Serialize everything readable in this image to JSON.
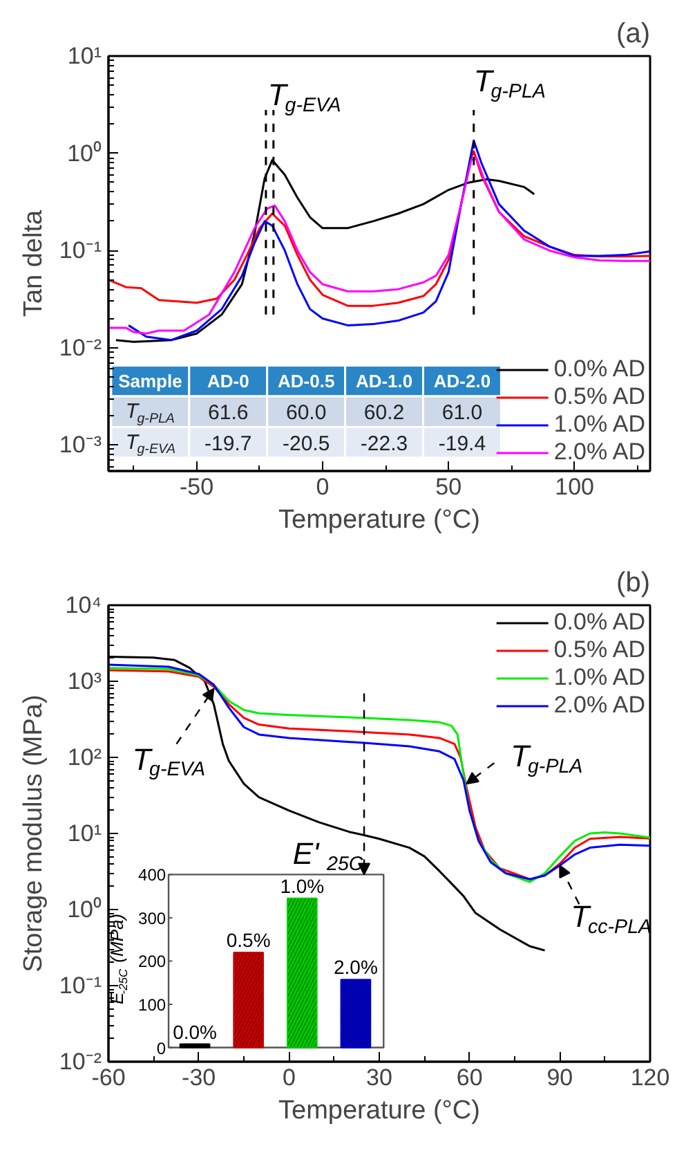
{
  "chart_data": [
    {
      "type": "line",
      "title": "(a)",
      "xlabel": "Temperature (°C)",
      "ylabel": "Tan delta",
      "log": "y",
      "legend": "bottom right",
      "xlim": [
        -85,
        130
      ],
      "ylim": [
        0.00054,
        10
      ],
      "xticks": [
        -50,
        0,
        50,
        100
      ],
      "yticks": [
        {
          "value": 0.001,
          "label": "10⁻³"
        },
        {
          "value": 0.01,
          "label": "10⁻²"
        },
        {
          "value": 0.1,
          "label": "10⁻¹"
        },
        {
          "value": 1,
          "label": "10⁰"
        },
        {
          "value": 10,
          "label": "10¹"
        }
      ],
      "series": [
        {
          "name": "0.0% AD",
          "color": "#000000",
          "x": [
            -82,
            -75,
            -60,
            -50,
            -40,
            -32,
            -27,
            -23,
            -20,
            -15,
            -10,
            -5,
            0,
            10,
            20,
            30,
            40,
            50,
            58,
            65,
            70,
            80,
            84
          ],
          "values": [
            0.012,
            0.0115,
            0.012,
            0.014,
            0.022,
            0.045,
            0.15,
            0.55,
            0.85,
            0.6,
            0.35,
            0.22,
            0.17,
            0.17,
            0.2,
            0.24,
            0.3,
            0.42,
            0.5,
            0.54,
            0.52,
            0.45,
            0.38
          ]
        },
        {
          "name": "0.5% AD",
          "color": "#ff0000",
          "x": [
            -85,
            -78,
            -72,
            -65,
            -50,
            -42,
            -35,
            -30,
            -25,
            -20,
            -15,
            -10,
            -5,
            0,
            10,
            20,
            30,
            40,
            45,
            50,
            55,
            59,
            60,
            63,
            70,
            80,
            90,
            100,
            110,
            120,
            130
          ],
          "values": [
            0.05,
            0.042,
            0.041,
            0.031,
            0.029,
            0.032,
            0.05,
            0.09,
            0.17,
            0.24,
            0.18,
            0.09,
            0.05,
            0.035,
            0.027,
            0.027,
            0.029,
            0.034,
            0.045,
            0.08,
            0.3,
            0.9,
            1.05,
            0.6,
            0.25,
            0.14,
            0.11,
            0.09,
            0.087,
            0.087,
            0.088
          ]
        },
        {
          "name": "1.0% AD",
          "color": "#0000ff",
          "x": [
            -77,
            -70,
            -60,
            -50,
            -40,
            -32,
            -27,
            -23,
            -20,
            -15,
            -10,
            -5,
            0,
            10,
            20,
            30,
            40,
            45,
            50,
            55,
            60,
            63,
            70,
            80,
            90,
            100,
            110,
            120,
            130
          ],
          "values": [
            0.017,
            0.013,
            0.012,
            0.015,
            0.025,
            0.055,
            0.12,
            0.2,
            0.18,
            0.1,
            0.045,
            0.025,
            0.02,
            0.017,
            0.0175,
            0.019,
            0.023,
            0.03,
            0.06,
            0.3,
            1.35,
            0.8,
            0.3,
            0.16,
            0.11,
            0.088,
            0.088,
            0.09,
            0.098
          ]
        },
        {
          "name": "2.0% AD",
          "color": "#ff00ff",
          "x": [
            -85,
            -78,
            -75,
            -70,
            -65,
            -55,
            -45,
            -35,
            -27,
            -22,
            -19,
            -15,
            -10,
            -5,
            0,
            10,
            20,
            30,
            40,
            45,
            50,
            55,
            59,
            61,
            64,
            70,
            80,
            90,
            100,
            110,
            120,
            130
          ],
          "values": [
            0.016,
            0.016,
            0.0145,
            0.014,
            0.015,
            0.015,
            0.022,
            0.06,
            0.17,
            0.27,
            0.29,
            0.2,
            0.1,
            0.06,
            0.045,
            0.038,
            0.038,
            0.04,
            0.047,
            0.055,
            0.09,
            0.3,
            0.85,
            0.9,
            0.55,
            0.25,
            0.13,
            0.1,
            0.085,
            0.079,
            0.078,
            0.078
          ]
        }
      ],
      "ref_lines": [
        {
          "axis": "x",
          "value": -22.5
        },
        {
          "axis": "x",
          "value": -19.5
        },
        {
          "axis": "x",
          "value": 60
        }
      ],
      "annotations": [
        "Sample",
        "AD-0",
        "AD-0.5",
        "AD-1.0",
        "AD-2.0",
        "T$_{g-PLA}$",
        "61.6",
        "60.0",
        "60.2",
        "61.0",
        "T$_{g-EVA}$",
        "-19.7",
        "-20.5",
        "-22.3",
        "-19.4",
        {
          "text": "T$_{g-EVA}$",
          "x": -19.5,
          "y": 2.6
        },
        {
          "text": "T$_{g-PLA}$",
          "x": 60,
          "y": 1.35
        }
      ]
    },
    {
      "type": "line",
      "title": "(b)",
      "xlabel": "Temperature (°C)",
      "ylabel": "Storage modulus (MPa)",
      "log": "y",
      "legend": "top right",
      "xlim": [
        -60,
        120
      ],
      "ylim": [
        0.01,
        10000
      ],
      "xticks": [
        -60,
        -30,
        0,
        30,
        60,
        90,
        120
      ],
      "yticks": [
        {
          "value": 0.01,
          "label": "10⁻²"
        },
        {
          "value": 0.1,
          "label": "10⁻¹"
        },
        {
          "value": 1,
          "label": "10⁰"
        },
        {
          "value": 10,
          "label": "10¹"
        },
        {
          "value": 100,
          "label": "10²"
        },
        {
          "value": 1000,
          "label": "10³"
        },
        {
          "value": 10000,
          "label": "10⁴"
        }
      ],
      "series": [
        {
          "name": "0.0% AD",
          "color": "#000000",
          "x": [
            -60,
            -45,
            -38,
            -33,
            -28,
            -25,
            -22,
            -20,
            -15,
            -10,
            0,
            10,
            20,
            25,
            30,
            40,
            45,
            50,
            55,
            58,
            62,
            70,
            80,
            85
          ],
          "values": [
            2100,
            2050,
            1900,
            1500,
            1000,
            500,
            150,
            90,
            45,
            30,
            20,
            14,
            10.5,
            9.5,
            8.5,
            6.5,
            5,
            3.2,
            2,
            1.5,
            0.9,
            0.55,
            0.33,
            0.29
          ]
        },
        {
          "name": "0.5% AD",
          "color": "#ff0000",
          "x": [
            -60,
            -40,
            -30,
            -25,
            -20,
            -15,
            -10,
            0,
            10,
            25,
            40,
            50,
            55,
            57,
            59,
            62,
            65,
            70,
            80,
            85,
            90,
            95,
            100,
            110,
            120
          ],
          "values": [
            1400,
            1350,
            1150,
            850,
            500,
            330,
            270,
            240,
            230,
            215,
            200,
            180,
            150,
            100,
            40,
            12,
            6,
            3.5,
            2.5,
            2.8,
            4,
            6.5,
            8.5,
            9,
            8.6
          ]
        },
        {
          "name": "1.0% AD",
          "color": "#00ee00",
          "x": [
            -60,
            -40,
            -30,
            -25,
            -20,
            -15,
            -10,
            0,
            25,
            40,
            50,
            54,
            56,
            58,
            60,
            63,
            67,
            72,
            80,
            85,
            90,
            95,
            100,
            105,
            110,
            120
          ],
          "values": [
            1500,
            1450,
            1200,
            900,
            550,
            420,
            380,
            360,
            330,
            310,
            290,
            260,
            200,
            60,
            20,
            8,
            4.5,
            3,
            2.3,
            3,
            5,
            8,
            10,
            10.3,
            10,
            8.8
          ]
        },
        {
          "name": "2.0% AD",
          "color": "#0000ff",
          "x": [
            -60,
            -40,
            -30,
            -25,
            -20,
            -15,
            -10,
            0,
            25,
            40,
            50,
            55,
            58,
            60,
            63,
            67,
            72,
            80,
            85,
            90,
            95,
            100,
            110,
            120
          ],
          "values": [
            1650,
            1550,
            1250,
            900,
            450,
            250,
            200,
            180,
            155,
            140,
            120,
            95,
            50,
            20,
            8,
            4.2,
            3,
            2.5,
            2.8,
            3.8,
            5.3,
            6.5,
            7.1,
            6.9
          ]
        }
      ],
      "annotations": [
        {
          "text": "T$_{g-EVA}$",
          "x": -25,
          "y": 800
        },
        {
          "text": "T$_{g-PLA}$",
          "x": 59,
          "y": 45
        },
        {
          "text": "T$_{cc-PLA}$",
          "x": 90,
          "y": 3.8
        },
        "E'$_{25C}$"
      ]
    },
    {
      "type": "bar",
      "ylabel": "E$_{-25C}$(MPa)",
      "categories": [
        "0.0%",
        "0.5%",
        "1.0%",
        "2.0%"
      ],
      "values": [
        8,
        220,
        345,
        157
      ],
      "colors": [
        "#000000",
        "#cc0000",
        "#00cc00",
        "#0000cc"
      ],
      "ylim": [
        0,
        400
      ],
      "yticks": [
        0,
        100,
        200,
        300,
        400
      ]
    }
  ]
}
